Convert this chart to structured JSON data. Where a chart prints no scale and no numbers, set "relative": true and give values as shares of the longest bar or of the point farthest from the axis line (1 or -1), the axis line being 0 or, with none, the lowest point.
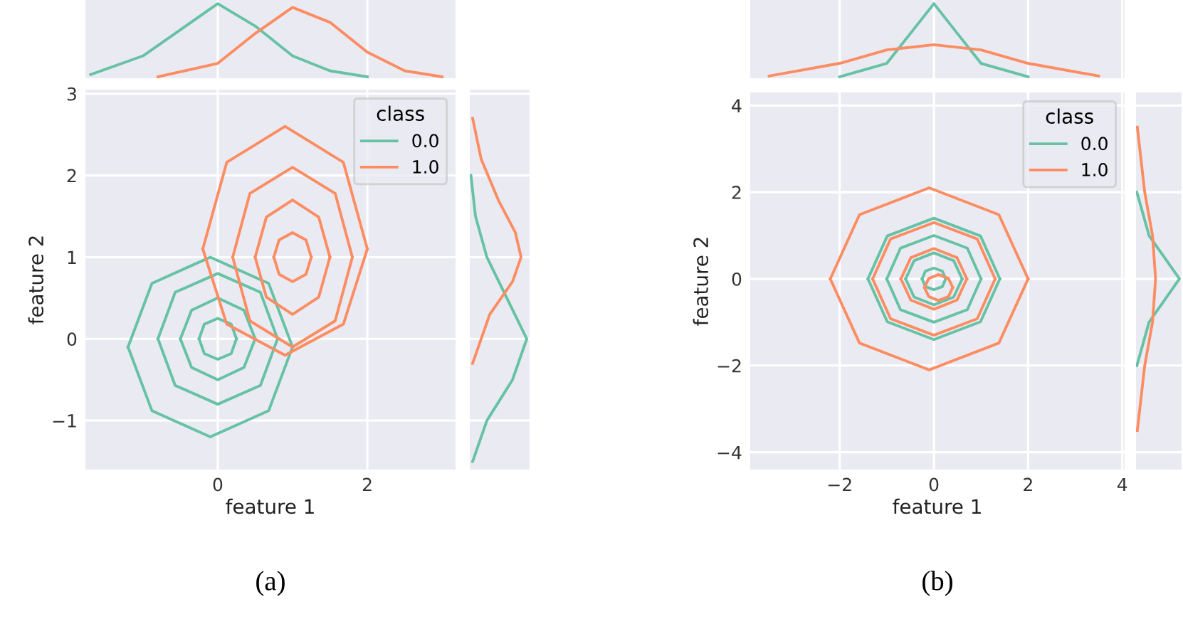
{
  "chart_data": [
    {
      "type": "line",
      "relative": true,
      "xlim": [
        -1.77,
        3.18
      ],
      "xticks": [
        0,
        2
      ],
      "tick_labels": false,
      "grid": true,
      "series": [
        {
          "color": "#66c2a5",
          "x": [
            -1.7,
            -1,
            -0.5,
            0,
            0.5,
            1,
            1.5,
            2
          ],
          "values": [
            0.05,
            0.3,
            0.65,
            1.0,
            0.7,
            0.3,
            0.1,
            0.02
          ]
        },
        {
          "color": "#fc8d62",
          "x": [
            -0.8,
            0,
            0.5,
            1,
            1.5,
            2,
            2.5,
            3
          ],
          "values": [
            0.02,
            0.2,
            0.6,
            0.95,
            0.75,
            0.35,
            0.1,
            0.02
          ]
        }
      ]
    },
    {
      "type": "line",
      "xlabel": "feature 1",
      "ylabel": "feature 2",
      "xlim": [
        -1.77,
        3.18
      ],
      "ylim": [
        -1.6,
        3.05
      ],
      "xticks": [
        0,
        2
      ],
      "yticks": [
        -1,
        0,
        1,
        2,
        3
      ],
      "grid": true,
      "legend": "top right",
      "legend_title": "class",
      "annotations": [
        "(a)"
      ],
      "series": [
        {
          "name": "0.0",
          "color": "#66c2a5",
          "x": [
            -1.2,
            -0.88,
            -0.1,
            0.68,
            1.0
          ],
          "values": [
            -0.1,
            0.68,
            1.0,
            0.68,
            -0.1
          ]
        },
        {
          "color": "#66c2a5",
          "x": [
            -1.2,
            -0.88,
            -0.1,
            0.68,
            1.0
          ],
          "values": [
            -0.1,
            -0.88,
            -1.2,
            -0.88,
            -0.1
          ]
        },
        {
          "color": "#66c2a5",
          "x": [
            -0.8,
            -0.57,
            0,
            0.57,
            0.8
          ],
          "values": [
            0,
            0.57,
            0.8,
            0.57,
            0
          ]
        },
        {
          "color": "#66c2a5",
          "x": [
            -0.8,
            -0.57,
            0,
            0.57,
            0.8
          ],
          "values": [
            0,
            -0.57,
            -0.8,
            -0.57,
            0
          ]
        },
        {
          "color": "#66c2a5",
          "x": [
            -0.5,
            -0.35,
            0,
            0.35,
            0.5
          ],
          "values": [
            0,
            0.35,
            0.5,
            0.35,
            0
          ]
        },
        {
          "color": "#66c2a5",
          "x": [
            -0.5,
            -0.35,
            0,
            0.35,
            0.5
          ],
          "values": [
            0,
            -0.35,
            -0.5,
            -0.35,
            0
          ]
        },
        {
          "color": "#66c2a5",
          "x": [
            -0.25,
            -0.18,
            0,
            0.18,
            0.25
          ],
          "values": [
            0,
            0.18,
            0.25,
            0.18,
            0
          ]
        },
        {
          "color": "#66c2a5",
          "x": [
            -0.25,
            -0.18,
            0,
            0.18,
            0.25
          ],
          "values": [
            0,
            -0.18,
            -0.25,
            -0.18,
            0
          ]
        },
        {
          "name": "1.0",
          "color": "#fc8d62",
          "x": [
            -0.2,
            0.12,
            0.9,
            1.68,
            2.0
          ],
          "values": [
            1.1,
            2.16,
            2.6,
            2.16,
            1.1
          ]
        },
        {
          "color": "#fc8d62",
          "x": [
            -0.2,
            0.12,
            0.9,
            1.68,
            2.0
          ],
          "values": [
            1.1,
            0.18,
            -0.2,
            0.18,
            1.1
          ]
        },
        {
          "color": "#fc8d62",
          "x": [
            0.2,
            0.43,
            1,
            1.57,
            1.8
          ],
          "values": [
            1,
            1.78,
            2.1,
            1.78,
            1
          ]
        },
        {
          "color": "#fc8d62",
          "x": [
            0.2,
            0.43,
            1,
            1.57,
            1.8
          ],
          "values": [
            1,
            0.22,
            -0.1,
            0.22,
            1
          ]
        },
        {
          "color": "#fc8d62",
          "x": [
            0.5,
            0.65,
            1,
            1.35,
            1.5
          ],
          "values": [
            1,
            1.49,
            1.7,
            1.49,
            1
          ]
        },
        {
          "color": "#fc8d62",
          "x": [
            0.5,
            0.65,
            1,
            1.35,
            1.5
          ],
          "values": [
            1,
            0.51,
            0.3,
            0.51,
            1
          ]
        },
        {
          "color": "#fc8d62",
          "x": [
            0.75,
            0.82,
            1,
            1.18,
            1.25
          ],
          "values": [
            1,
            1.21,
            1.3,
            1.21,
            1
          ]
        },
        {
          "color": "#fc8d62",
          "x": [
            0.75,
            0.82,
            1,
            1.18,
            1.25
          ],
          "values": [
            1,
            0.79,
            0.7,
            0.79,
            1
          ]
        }
      ]
    },
    {
      "type": "line",
      "orientation": "horizontal",
      "relative": true,
      "ylim": [
        -1.6,
        3.05
      ],
      "yticks": [
        -1,
        0,
        1,
        2,
        3
      ],
      "tick_labels": false,
      "grid": true,
      "series": [
        {
          "color": "#66c2a5",
          "x": [
            -1.5,
            -1,
            -0.5,
            0,
            0.5,
            1,
            1.5,
            2
          ],
          "values": [
            0.05,
            0.3,
            0.75,
            1.0,
            0.65,
            0.3,
            0.1,
            0.02
          ]
        },
        {
          "color": "#fc8d62",
          "x": [
            -0.3,
            0.3,
            0.7,
            1,
            1.3,
            1.7,
            2.2,
            2.7
          ],
          "values": [
            0.05,
            0.35,
            0.75,
            0.9,
            0.8,
            0.5,
            0.2,
            0.05
          ]
        }
      ]
    },
    {
      "type": "line",
      "relative": true,
      "xlim": [
        -3.9,
        4.05
      ],
      "xticks": [
        -2,
        0,
        2,
        4
      ],
      "tick_labels": false,
      "grid": true,
      "series": [
        {
          "color": "#66c2a5",
          "x": [
            -2,
            -1,
            -0.5,
            0,
            0.5,
            1,
            2
          ],
          "values": [
            0.02,
            0.2,
            0.6,
            1.0,
            0.6,
            0.2,
            0.02
          ]
        },
        {
          "color": "#fc8d62",
          "x": [
            -3.5,
            -2,
            -1,
            0,
            1,
            2,
            3.5
          ],
          "values": [
            0.03,
            0.2,
            0.38,
            0.45,
            0.38,
            0.2,
            0.03
          ]
        }
      ]
    },
    {
      "type": "line",
      "xlabel": "feature 1",
      "ylabel": "feature 2",
      "xlim": [
        -3.9,
        4.05
      ],
      "ylim": [
        -4.4,
        4.3
      ],
      "xticks": [
        -2,
        0,
        2,
        4
      ],
      "yticks": [
        -4,
        -2,
        0,
        2,
        4
      ],
      "grid": true,
      "legend": "top right",
      "legend_title": "class",
      "annotations": [
        "(b)"
      ],
      "series": [
        {
          "name": "0.0",
          "color": "#66c2a5",
          "x": [
            -1.4,
            -0.99,
            0,
            0.99,
            1.4
          ],
          "values": [
            0,
            0.99,
            1.4,
            0.99,
            0
          ]
        },
        {
          "color": "#66c2a5",
          "x": [
            -1.4,
            -0.99,
            0,
            0.99,
            1.4
          ],
          "values": [
            0,
            -0.99,
            -1.4,
            -0.99,
            0
          ]
        },
        {
          "color": "#66c2a5",
          "x": [
            -1,
            -0.71,
            0,
            0.71,
            1
          ],
          "values": [
            0,
            0.71,
            1,
            0.71,
            0
          ]
        },
        {
          "color": "#66c2a5",
          "x": [
            -1,
            -0.71,
            0,
            0.71,
            1
          ],
          "values": [
            0,
            -0.71,
            -1,
            -0.71,
            0
          ]
        },
        {
          "color": "#66c2a5",
          "x": [
            -0.6,
            -0.42,
            0,
            0.42,
            0.6
          ],
          "values": [
            0,
            0.42,
            0.6,
            0.42,
            0
          ]
        },
        {
          "color": "#66c2a5",
          "x": [
            -0.6,
            -0.42,
            0,
            0.42,
            0.6
          ],
          "values": [
            0,
            -0.42,
            -0.6,
            -0.42,
            0
          ]
        },
        {
          "color": "#66c2a5",
          "x": [
            -0.25,
            -0.18,
            0,
            0.18,
            0.25
          ],
          "values": [
            0,
            0.18,
            0.25,
            0.18,
            0
          ]
        },
        {
          "color": "#66c2a5",
          "x": [
            -0.25,
            -0.18,
            0,
            0.18,
            0.25
          ],
          "values": [
            0,
            -0.18,
            -0.25,
            -0.18,
            0
          ]
        },
        {
          "name": "1.0",
          "color": "#fc8d62",
          "x": [
            -2.2,
            -1.58,
            -0.1,
            1.38,
            2.0
          ],
          "values": [
            0,
            1.48,
            2.1,
            1.48,
            0
          ]
        },
        {
          "color": "#fc8d62",
          "x": [
            -2.2,
            -1.58,
            -0.1,
            1.38,
            2.0
          ],
          "values": [
            0,
            -1.48,
            -2.1,
            -1.48,
            0
          ]
        },
        {
          "color": "#fc8d62",
          "x": [
            -1.3,
            -0.92,
            0,
            0.92,
            1.3
          ],
          "values": [
            0,
            0.92,
            1.3,
            0.92,
            0
          ]
        },
        {
          "color": "#fc8d62",
          "x": [
            -1.3,
            -0.92,
            0,
            0.92,
            1.3
          ],
          "values": [
            0,
            -0.92,
            -1.3,
            -0.92,
            0
          ]
        },
        {
          "color": "#fc8d62",
          "x": [
            -0.7,
            -0.49,
            0,
            0.49,
            0.7
          ],
          "values": [
            0,
            0.49,
            0.7,
            0.49,
            0
          ]
        },
        {
          "color": "#fc8d62",
          "x": [
            -0.7,
            -0.49,
            0,
            0.49,
            0.7
          ],
          "values": [
            0,
            -0.49,
            -0.7,
            -0.49,
            0
          ]
        },
        {
          "color": "#fc8d62",
          "x": [
            -0.2,
            -0.11,
            0.1,
            0.31,
            0.4
          ],
          "values": [
            -0.2,
            0.01,
            0.1,
            0.01,
            -0.2
          ]
        },
        {
          "color": "#fc8d62",
          "x": [
            -0.2,
            -0.11,
            0.1,
            0.31,
            0.4
          ],
          "values": [
            -0.2,
            -0.41,
            -0.5,
            -0.41,
            -0.2
          ]
        }
      ]
    },
    {
      "type": "line",
      "orientation": "horizontal",
      "relative": true,
      "ylim": [
        -4.4,
        4.3
      ],
      "yticks": [
        -4,
        -2,
        0,
        2,
        4
      ],
      "tick_labels": false,
      "grid": true,
      "series": [
        {
          "color": "#66c2a5",
          "x": [
            -2,
            -1,
            0,
            1,
            2
          ],
          "values": [
            0.02,
            0.3,
            1.0,
            0.3,
            0.02
          ]
        },
        {
          "color": "#fc8d62",
          "x": [
            -3.5,
            -2,
            -1,
            0,
            1,
            2,
            3.5
          ],
          "values": [
            0.03,
            0.2,
            0.38,
            0.45,
            0.38,
            0.2,
            0.03
          ]
        }
      ]
    }
  ]
}
